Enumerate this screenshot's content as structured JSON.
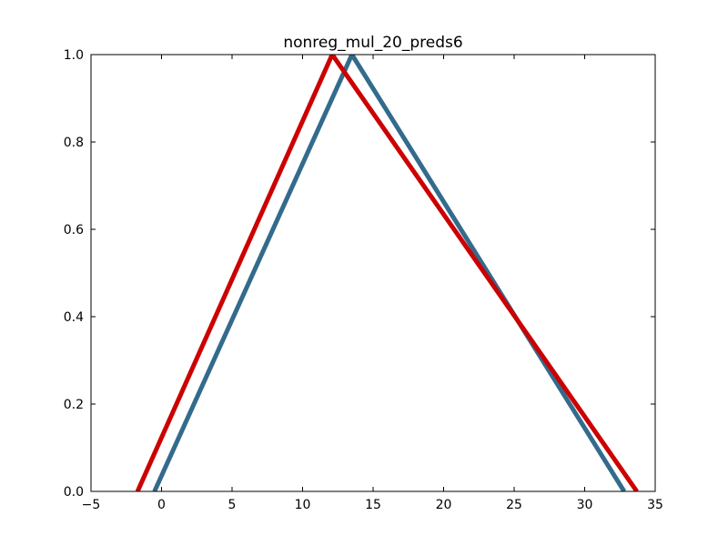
{
  "chart_data": {
    "type": "line",
    "title": "nonreg_mul_20_preds6",
    "xlabel": "",
    "ylabel": "",
    "xlim": [
      -5,
      35
    ],
    "ylim": [
      0.0,
      1.0
    ],
    "xticks": [
      -5,
      0,
      5,
      10,
      15,
      20,
      25,
      30,
      35
    ],
    "xtick_labels": [
      "−5",
      "0",
      "5",
      "10",
      "15",
      "20",
      "25",
      "30",
      "35"
    ],
    "yticks": [
      0.0,
      0.2,
      0.4,
      0.6,
      0.8,
      1.0
    ],
    "ytick_labels": [
      "0.0",
      "0.2",
      "0.4",
      "0.6",
      "0.8",
      "1.0"
    ],
    "grid": false,
    "series": [
      {
        "color": "#336b8c",
        "x": [
          -0.5,
          13.5,
          32.8
        ],
        "y": [
          0.0,
          1.0,
          0.0
        ]
      },
      {
        "color": "#cc0000",
        "x": [
          -1.7,
          12.1,
          33.7
        ],
        "y": [
          0.0,
          1.0,
          0.0
        ]
      }
    ]
  }
}
